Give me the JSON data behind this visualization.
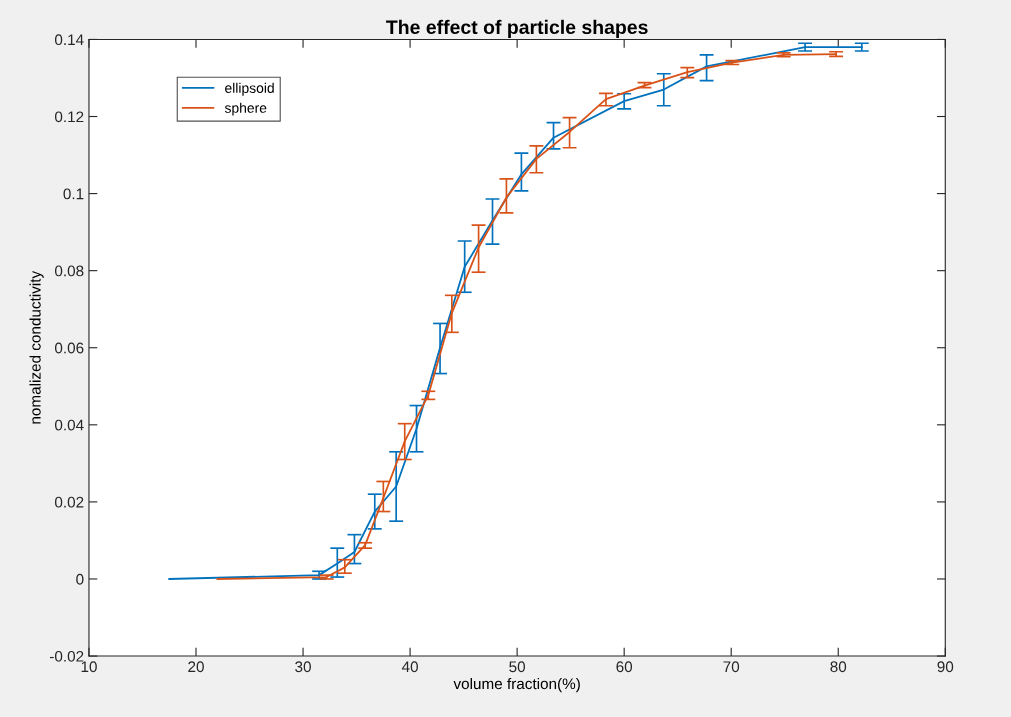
{
  "chart_data": {
    "type": "line",
    "title": "The effect of particle shapes",
    "xlabel": "volume fraction(%)",
    "ylabel": "nomalized conductivity",
    "xlim": [
      10,
      90
    ],
    "xticks": [
      10,
      20,
      30,
      40,
      50,
      60,
      70,
      80,
      90
    ],
    "ylim": [
      -0.02,
      0.14
    ],
    "yticks": [
      -0.02,
      0,
      0.02,
      0.04,
      0.06,
      0.08,
      0.1,
      0.12,
      0.14
    ],
    "grid": false,
    "legend": "top left",
    "marker": "none",
    "line_style": "solid",
    "series": [
      {
        "name": "ellipsoid",
        "color": "#0072bd",
        "x": [
          17.5,
          31.5,
          33.2,
          34.8,
          36.7,
          38.7,
          40.6,
          42.8,
          45.1,
          47.7,
          50.4,
          53.4,
          60.0,
          63.7,
          67.7,
          76.9,
          82.2
        ],
        "values": [
          0,
          0.001,
          0.004,
          0.007,
          0.0175,
          0.024,
          0.039,
          0.06,
          0.081,
          0.093,
          0.105,
          0.1145,
          0.124,
          0.127,
          0.133,
          0.138,
          0.138
        ],
        "errors": [
          null,
          [
            0,
            0.002
          ],
          [
            0.0005,
            0.008
          ],
          [
            0.004,
            0.0115
          ],
          [
            0.013,
            0.022
          ],
          [
            0.015,
            0.033
          ],
          [
            0.033,
            0.045
          ],
          [
            0.0533,
            0.0663
          ],
          [
            0.0744,
            0.0877
          ],
          [
            0.0869,
            0.0986
          ],
          [
            0.1007,
            0.1105
          ],
          [
            0.1116,
            0.1184
          ],
          [
            0.122,
            0.1259
          ],
          [
            0.1228,
            0.1311
          ],
          [
            0.1293,
            0.136
          ],
          [
            0.137,
            0.139
          ],
          [
            0.137,
            0.139
          ]
        ]
      },
      {
        "name": "sphere",
        "color": "#d95319",
        "x": [
          22.0,
          32.2,
          33.9,
          35.8,
          37.5,
          39.5,
          41.7,
          43.9,
          46.4,
          49.0,
          51.8,
          54.9,
          58.3,
          61.9,
          65.9,
          70.1,
          74.9,
          79.8
        ],
        "values": [
          0,
          0.0005,
          0.003,
          0.0088,
          0.021,
          0.0357,
          0.0477,
          0.069,
          0.086,
          0.099,
          0.109,
          0.116,
          0.1245,
          0.128,
          0.1315,
          0.134,
          0.136,
          0.1362
        ],
        "errors": [
          null,
          [
            0,
            0.001
          ],
          [
            0.0015,
            0.005
          ],
          [
            0.008,
            0.0094
          ],
          [
            0.0175,
            0.0253
          ],
          [
            0.031,
            0.0403
          ],
          [
            0.0466,
            0.0487
          ],
          [
            0.064,
            0.0736
          ],
          [
            0.0796,
            0.0918
          ],
          [
            0.095,
            0.1038
          ],
          [
            0.1054,
            0.1124
          ],
          [
            0.1119,
            0.1197
          ],
          [
            0.1228,
            0.126
          ],
          [
            0.1275,
            0.1288
          ],
          [
            0.1301,
            0.1327
          ],
          [
            0.1335,
            0.1345
          ],
          [
            0.1355,
            0.1365
          ],
          [
            0.1356,
            0.1368
          ]
        ]
      }
    ]
  }
}
